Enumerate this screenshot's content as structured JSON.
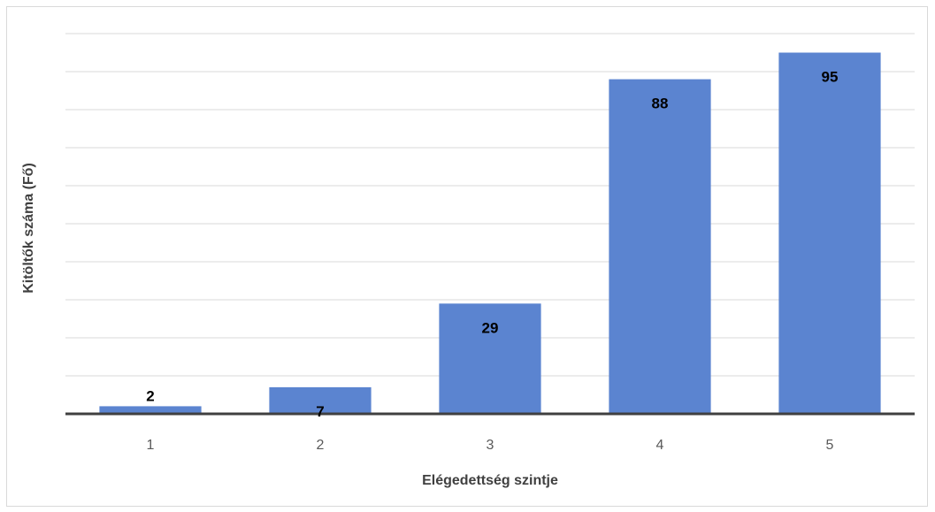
{
  "chart_data": {
    "type": "bar",
    "categories": [
      "1",
      "2",
      "3",
      "4",
      "5"
    ],
    "values": [
      2,
      7,
      29,
      88,
      95
    ],
    "title": "",
    "xlabel": "Elégedettség szintje",
    "ylabel": "Kitöltők száma (Fő)",
    "ylim": [
      0,
      100
    ],
    "grid": true,
    "bar_color": "#5b84d0",
    "axis_color": "#404040",
    "grid_color": "#d9d9d9"
  }
}
